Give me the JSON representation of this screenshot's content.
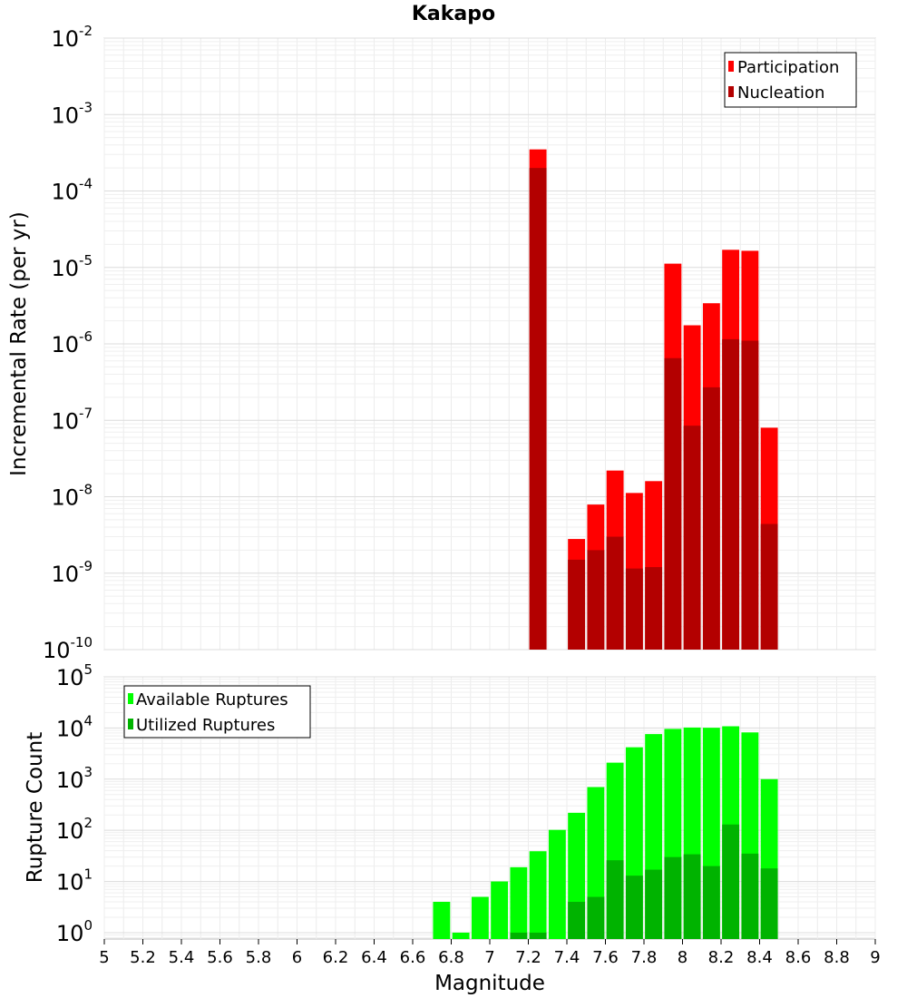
{
  "chart_data": [
    {
      "type": "bar",
      "title": "Kakapo",
      "ylabel": "Incremental Rate (per yr)",
      "xlabel": "",
      "y_scale": "log",
      "ylim": [
        1e-10,
        0.01
      ],
      "xlim": [
        5,
        9
      ],
      "y_ticks": [
        {
          "base": "10",
          "exp": "-10"
        },
        {
          "base": "10",
          "exp": "-9"
        },
        {
          "base": "10",
          "exp": "-8"
        },
        {
          "base": "10",
          "exp": "-7"
        },
        {
          "base": "10",
          "exp": "-6"
        },
        {
          "base": "10",
          "exp": "-5"
        },
        {
          "base": "10",
          "exp": "-4"
        },
        {
          "base": "10",
          "exp": "-3"
        },
        {
          "base": "10",
          "exp": "-2"
        }
      ],
      "grid": true,
      "legend_position": "top-right",
      "legend": [
        "Participation",
        "Nucleation"
      ],
      "series": [
        {
          "name": "Participation",
          "color": "#ff0000",
          "x": [
            7.25,
            7.45,
            7.55,
            7.65,
            7.75,
            7.85,
            7.95,
            8.05,
            8.15,
            8.25,
            8.35,
            8.45
          ],
          "values": [
            0.00035,
            2.8e-09,
            7.9e-09,
            2.2e-08,
            1.12e-08,
            1.6e-08,
            1.12e-05,
            1.75e-06,
            3.4e-06,
            1.7e-05,
            1.65e-05,
            8e-08
          ]
        },
        {
          "name": "Nucleation",
          "color": "#b30000",
          "x": [
            7.25,
            7.45,
            7.55,
            7.65,
            7.75,
            7.85,
            7.95,
            8.05,
            8.15,
            8.25,
            8.35,
            8.45
          ],
          "values": [
            0.0002,
            1.5e-09,
            2e-09,
            3e-09,
            1.15e-09,
            1.2e-09,
            6.5e-07,
            8.5e-08,
            2.7e-07,
            1.15e-06,
            1.1e-06,
            4.4e-09
          ]
        }
      ]
    },
    {
      "type": "bar",
      "title": "",
      "ylabel": "Rupture Count",
      "xlabel": "Magnitude",
      "y_scale": "log",
      "ylim": [
        0.75,
        100000
      ],
      "xlim": [
        5,
        9
      ],
      "x_ticks": [
        "5",
        "5.2",
        "5.4",
        "5.6",
        "5.8",
        "6",
        "6.2",
        "6.4",
        "6.6",
        "6.8",
        "7",
        "7.2",
        "7.4",
        "7.6",
        "7.8",
        "8",
        "8.2",
        "8.4",
        "8.6",
        "8.8",
        "9"
      ],
      "y_ticks": [
        {
          "base": "10",
          "exp": "0"
        },
        {
          "base": "10",
          "exp": "1"
        },
        {
          "base": "10",
          "exp": "2"
        },
        {
          "base": "10",
          "exp": "3"
        },
        {
          "base": "10",
          "exp": "4"
        },
        {
          "base": "10",
          "exp": "5"
        }
      ],
      "grid": true,
      "legend_position": "top-left",
      "legend": [
        "Available Ruptures",
        "Utilized Ruptures"
      ],
      "series": [
        {
          "name": "Available Ruptures",
          "color": "#00ff00",
          "x": [
            6.75,
            6.85,
            6.95,
            7.05,
            7.15,
            7.25,
            7.35,
            7.45,
            7.55,
            7.65,
            7.75,
            7.85,
            7.95,
            8.05,
            8.15,
            8.25,
            8.35,
            8.45
          ],
          "values": [
            4,
            1,
            5,
            10,
            19,
            39,
            102,
            220,
            700,
            2100,
            4200,
            7600,
            9600,
            10200,
            10100,
            10800,
            8200,
            1000
          ]
        },
        {
          "name": "Utilized Ruptures",
          "color": "#00b300",
          "x": [
            7.15,
            7.25,
            7.45,
            7.55,
            7.65,
            7.75,
            7.85,
            7.95,
            8.05,
            8.15,
            8.25,
            8.35,
            8.45
          ],
          "values": [
            1,
            1,
            4,
            5,
            26,
            13,
            17,
            30,
            34,
            20,
            130,
            35,
            18
          ]
        }
      ]
    }
  ]
}
